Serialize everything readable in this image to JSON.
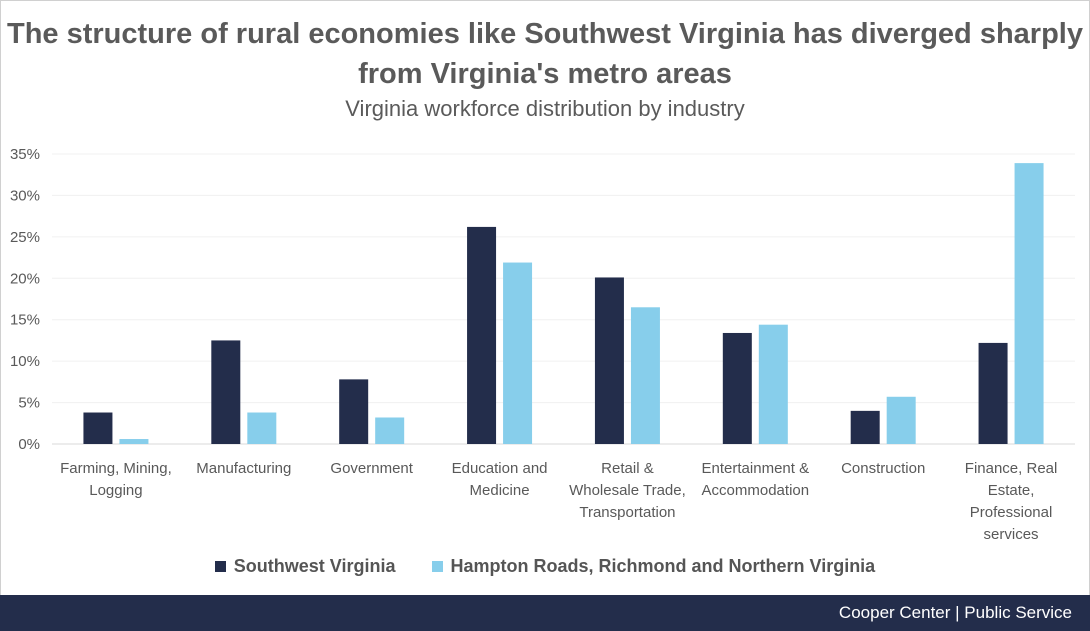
{
  "chart_data": {
    "type": "bar",
    "title": "The structure of rural economies like Southwest Virginia has diverged sharply from Virginia's metro areas",
    "subtitle": "Virginia workforce distribution by industry",
    "categories": [
      [
        "Farming, Mining,",
        "Logging"
      ],
      [
        "Manufacturing"
      ],
      [
        "Government"
      ],
      [
        "Education and",
        "Medicine"
      ],
      [
        "Retail &",
        "Wholesale Trade,",
        "Transportation"
      ],
      [
        "Entertainment &",
        "Accommodation"
      ],
      [
        "Construction"
      ],
      [
        "Finance, Real",
        "Estate,",
        "Professional",
        "services"
      ]
    ],
    "series": [
      {
        "name": "Southwest Virginia",
        "color": "#232d4b",
        "values": [
          3.8,
          12.5,
          7.8,
          26.2,
          20.1,
          13.4,
          4.0,
          12.2
        ]
      },
      {
        "name": "Hampton Roads, Richmond and Northern Virginia",
        "color": "#87ceeb",
        "values": [
          0.6,
          3.8,
          3.2,
          21.9,
          16.5,
          14.4,
          5.7,
          33.9
        ]
      }
    ],
    "ylim": [
      0,
      35
    ],
    "yticks": [
      "0%",
      "5%",
      "10%",
      "15%",
      "20%",
      "25%",
      "30%",
      "35%"
    ],
    "ytick_values": [
      0,
      5,
      10,
      15,
      20,
      25,
      30,
      35
    ],
    "grid": true,
    "legend_position": "bottom"
  },
  "footer": {
    "text": "Cooper Center | Public Service"
  }
}
